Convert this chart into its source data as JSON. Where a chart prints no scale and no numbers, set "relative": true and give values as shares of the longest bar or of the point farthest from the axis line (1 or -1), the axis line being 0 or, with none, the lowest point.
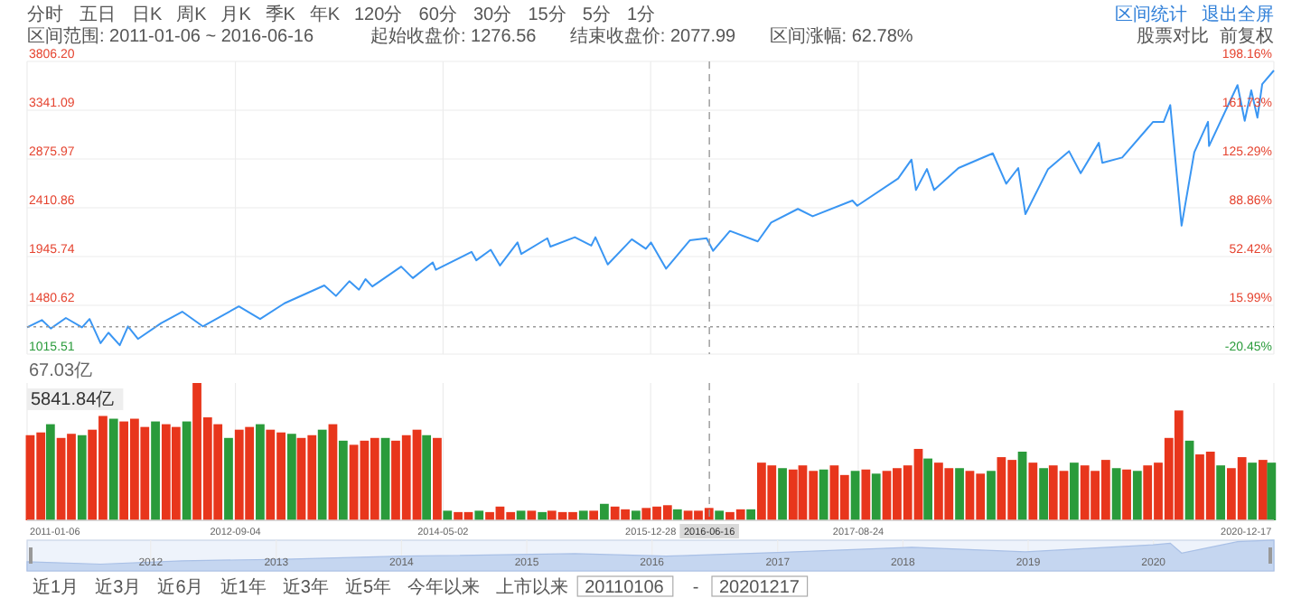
{
  "chart_data": [
    {
      "type": "line",
      "xlim": [
        "2011-01-06",
        "2020-12-17"
      ],
      "xticks": [
        "2011-01-06",
        "2012-09-04",
        "2014-05-02",
        "2015-12-28",
        "2017-08-24",
        "2020-12-17"
      ],
      "ylim": [
        1015.51,
        3806.2
      ],
      "yticks": [
        1015.51,
        1480.62,
        1945.74,
        2410.86,
        2875.97,
        3341.09,
        {
          "value": 3806.2,
          "label": "3806.20"
        }
      ],
      "y2lim": [
        -20.45,
        198.16
      ],
      "y2ticks": [
        {
          "value": -20.45,
          "label": "-20.45%"
        },
        {
          "value": 15.99,
          "label": "15.99%"
        },
        {
          "value": 52.42,
          "label": "52.42%"
        },
        {
          "value": 88.86,
          "label": "88.86%"
        },
        {
          "value": 125.29,
          "label": "125.29%"
        },
        {
          "value": 161.73,
          "label": "161.73%"
        },
        {
          "value": 198.16,
          "label": "198.16%"
        }
      ],
      "grid": true,
      "tick_labels": "y",
      "ref_lines": [
        {
          "axis": "x",
          "value": "2016-06-16",
          "line_style": "dashed",
          "color": "#999999"
        },
        {
          "axis": "y",
          "value": 1276.56,
          "line_style": "dotted",
          "color": "#999999"
        }
      ],
      "series": [
        {
          "color": "#3a96f3",
          "x": [
            "2011-01-06",
            "2011-02-18",
            "2011-03-16",
            "2011-04-29",
            "2011-06-15",
            "2011-07-07",
            "2011-08-08",
            "2011-08-31",
            "2011-10-03",
            "2011-10-27",
            "2011-11-25",
            "2012-01-31",
            "2012-04-02",
            "2012-06-01",
            "2012-09-14",
            "2012-11-15",
            "2013-01-25",
            "2013-05-21",
            "2013-06-24",
            "2013-08-02",
            "2013-08-30",
            "2013-09-18",
            "2013-10-08",
            "2013-12-31",
            "2014-02-03",
            "2014-04-02",
            "2014-04-11",
            "2014-07-24",
            "2014-08-07",
            "2014-09-18",
            "2014-10-15",
            "2014-12-05",
            "2014-12-16",
            "2015-03-02",
            "2015-03-11",
            "2015-05-21",
            "2015-07-08",
            "2015-07-20",
            "2015-08-25",
            "2015-11-03",
            "2015-12-14",
            "2015-12-29",
            "2016-02-11",
            "2016-04-20",
            "2016-06-08",
            "2016-06-27",
            "2016-08-15",
            "2016-11-04",
            "2016-12-13",
            "2017-03-01",
            "2017-04-13",
            "2017-08-07",
            "2017-08-21",
            "2017-12-18",
            "2018-01-26",
            "2018-02-08",
            "2018-03-12",
            "2018-04-02",
            "2018-06-12",
            "2018-07-25",
            "2018-09-20",
            "2018-10-29",
            "2018-12-03",
            "2018-12-24",
            "2019-02-28",
            "2019-04-30",
            "2019-06-03",
            "2019-07-26",
            "2019-08-05",
            "2019-10-02",
            "2019-12-31",
            "2020-01-31",
            "2020-02-19",
            "2020-03-23",
            "2020-04-29",
            "2020-06-08",
            "2020-06-11",
            "2020-09-02",
            "2020-09-23",
            "2020-10-12",
            "2020-10-30",
            "2020-11-13",
            "2020-12-17"
          ],
          "values": [
            1270,
            1340,
            1260,
            1360,
            1270,
            1350,
            1120,
            1220,
            1100,
            1280,
            1160,
            1310,
            1420,
            1280,
            1470,
            1350,
            1500,
            1670,
            1570,
            1710,
            1630,
            1730,
            1660,
            1850,
            1740,
            1890,
            1820,
            1990,
            1910,
            2010,
            1860,
            2080,
            1970,
            2120,
            2040,
            2130,
            2050,
            2130,
            1870,
            2110,
            2020,
            2080,
            1830,
            2100,
            2120,
            2000,
            2190,
            2090,
            2270,
            2400,
            2330,
            2480,
            2430,
            2690,
            2870,
            2580,
            2780,
            2580,
            2790,
            2850,
            2930,
            2640,
            2790,
            2350,
            2780,
            2950,
            2740,
            3030,
            2840,
            2890,
            3230,
            3230,
            3390,
            2240,
            2940,
            3230,
            3000,
            3580,
            3240,
            3530,
            3270,
            3590,
            3720
          ]
        }
      ]
    },
    {
      "type": "bar",
      "relative": true,
      "xlim": [
        "2011-01-06",
        "2020-12-17"
      ],
      "xticks": [
        "2011-01-06",
        "2012-09-04",
        "2014-05-02",
        "2015-12-28",
        "2017-08-24",
        "2020-12-17"
      ],
      "grid": "x",
      "tick_labels": "x",
      "annotations": [
        "67.03亿",
        "5841.84亿"
      ],
      "ref_lines": [
        {
          "axis": "x",
          "value": "2016-06-16",
          "label": "2016-06-16",
          "line_style": "dashed",
          "color": "#999999"
        }
      ],
      "x": [
        "2011-01-15",
        "2011-02-15",
        "2011-03-15",
        "2011-04-15",
        "2011-05-15",
        "2011-06-15",
        "2011-07-15",
        "2011-08-15",
        "2011-09-15",
        "2011-10-15",
        "2011-11-15",
        "2011-12-15",
        "2012-01-15",
        "2012-02-15",
        "2012-03-15",
        "2012-04-15",
        "2012-05-15",
        "2012-06-15",
        "2012-07-15",
        "2012-08-15",
        "2012-09-15",
        "2012-10-15",
        "2012-11-15",
        "2012-12-15",
        "2013-01-15",
        "2013-02-15",
        "2013-03-15",
        "2013-04-15",
        "2013-05-15",
        "2013-06-15",
        "2013-07-15",
        "2013-08-15",
        "2013-09-15",
        "2013-10-15",
        "2013-11-15",
        "2013-12-15",
        "2014-01-15",
        "2014-02-15",
        "2014-03-15",
        "2014-04-15",
        "2014-05-15",
        "2014-06-15",
        "2014-07-15",
        "2014-08-15",
        "2014-09-15",
        "2014-10-15",
        "2014-11-15",
        "2014-12-15",
        "2015-01-15",
        "2015-02-15",
        "2015-03-15",
        "2015-04-15",
        "2015-05-15",
        "2015-06-15",
        "2015-07-15",
        "2015-08-15",
        "2015-09-15",
        "2015-10-15",
        "2015-11-15",
        "2015-12-15",
        "2016-01-15",
        "2016-02-15",
        "2016-03-15",
        "2016-04-15",
        "2016-05-15",
        "2016-06-15",
        "2016-07-15",
        "2016-08-15",
        "2016-09-15",
        "2016-10-15",
        "2016-11-15",
        "2016-12-15",
        "2017-01-15",
        "2017-02-15",
        "2017-03-15",
        "2017-04-15",
        "2017-05-15",
        "2017-06-15",
        "2017-07-15",
        "2017-08-15",
        "2017-09-15",
        "2017-10-15",
        "2017-11-15",
        "2017-12-15",
        "2018-01-15",
        "2018-02-15",
        "2018-03-15",
        "2018-04-15",
        "2018-05-15",
        "2018-06-15",
        "2018-07-15",
        "2018-08-15",
        "2018-09-15",
        "2018-10-15",
        "2018-11-15",
        "2018-12-15",
        "2019-01-15",
        "2019-02-15",
        "2019-03-15",
        "2019-04-15",
        "2019-05-15",
        "2019-06-15",
        "2019-07-15",
        "2019-08-15",
        "2019-09-15",
        "2019-10-15",
        "2019-11-15",
        "2019-12-15",
        "2020-01-15",
        "2020-02-15",
        "2020-03-15",
        "2020-04-15",
        "2020-05-15",
        "2020-06-15",
        "2020-07-15",
        "2020-08-15",
        "2020-09-15",
        "2020-10-15",
        "2020-11-15",
        "2020-12-10"
      ],
      "values": [
        0.62,
        0.64,
        0.7,
        0.6,
        0.63,
        0.62,
        0.66,
        0.76,
        0.74,
        0.72,
        0.74,
        0.68,
        0.72,
        0.7,
        0.68,
        0.72,
        1,
        0.75,
        0.7,
        0.6,
        0.66,
        0.68,
        0.7,
        0.66,
        0.64,
        0.63,
        0.6,
        0.62,
        0.66,
        0.7,
        0.58,
        0.55,
        0.58,
        0.6,
        0.6,
        0.58,
        0.62,
        0.66,
        0.62,
        0.6,
        0.07,
        0.06,
        0.06,
        0.07,
        0.06,
        0.1,
        0.06,
        0.07,
        0.07,
        0.06,
        0.07,
        0.06,
        0.06,
        0.07,
        0.07,
        0.12,
        0.1,
        0.08,
        0.07,
        0.09,
        0.1,
        0.11,
        0.08,
        0.07,
        0.07,
        0.09,
        0.07,
        0.06,
        0.08,
        0.08,
        0.42,
        0.4,
        0.38,
        0.37,
        0.4,
        0.36,
        0.37,
        0.4,
        0.33,
        0.36,
        0.37,
        0.34,
        0.36,
        0.38,
        0.4,
        0.52,
        0.45,
        0.42,
        0.38,
        0.38,
        0.36,
        0.34,
        0.36,
        0.46,
        0.44,
        0.5,
        0.42,
        0.38,
        0.4,
        0.36,
        0.42,
        0.4,
        0.36,
        0.44,
        0.38,
        0.37,
        0.36,
        0.4,
        0.42,
        0.6,
        0.8,
        0.58,
        0.48,
        0.5,
        0.4,
        0.38,
        0.46,
        0.42,
        0.44,
        0.42
      ],
      "colors": [
        "#e8361c",
        "#e8361c",
        "#2a9b3b",
        "#e8361c",
        "#e8361c",
        "#2a9b3b",
        "#e8361c",
        "#e8361c",
        "#2a9b3b",
        "#e8361c",
        "#e8361c",
        "#e8361c",
        "#2a9b3b",
        "#e8361c",
        "#e8361c",
        "#2a9b3b",
        "#e8361c",
        "#e8361c",
        "#e8361c",
        "#2a9b3b",
        "#e8361c",
        "#e8361c",
        "#2a9b3b",
        "#e8361c",
        "#e8361c",
        "#2a9b3b",
        "#e8361c",
        "#e8361c",
        "#2a9b3b",
        "#e8361c",
        "#2a9b3b",
        "#e8361c",
        "#e8361c",
        "#e8361c",
        "#2a9b3b",
        "#e8361c",
        "#e8361c",
        "#e8361c",
        "#2a9b3b",
        "#e8361c",
        "#2a9b3b",
        "#e8361c",
        "#e8361c",
        "#2a9b3b",
        "#e8361c",
        "#e8361c",
        "#e8361c",
        "#2a9b3b",
        "#e8361c",
        "#2a9b3b",
        "#e8361c",
        "#e8361c",
        "#e8361c",
        "#2a9b3b",
        "#e8361c",
        "#2a9b3b",
        "#e8361c",
        "#e8361c",
        "#2a9b3b",
        "#e8361c",
        "#e8361c",
        "#e8361c",
        "#2a9b3b",
        "#e8361c",
        "#e8361c",
        "#e8361c",
        "#2a9b3b",
        "#e8361c",
        "#e8361c",
        "#2a9b3b",
        "#e8361c",
        "#e8361c",
        "#2a9b3b",
        "#e8361c",
        "#e8361c",
        "#e8361c",
        "#2a9b3b",
        "#e8361c",
        "#e8361c",
        "#2a9b3b",
        "#e8361c",
        "#2a9b3b",
        "#e8361c",
        "#e8361c",
        "#e8361c",
        "#e8361c",
        "#2a9b3b",
        "#e8361c",
        "#e8361c",
        "#2a9b3b",
        "#e8361c",
        "#e8361c",
        "#2a9b3b",
        "#e8361c",
        "#e8361c",
        "#2a9b3b",
        "#e8361c",
        "#2a9b3b",
        "#e8361c",
        "#e8361c",
        "#2a9b3b",
        "#e8361c",
        "#e8361c",
        "#e8361c",
        "#2a9b3b",
        "#e8361c",
        "#2a9b3b",
        "#e8361c",
        "#e8361c",
        "#e8361c",
        "#e8361c",
        "#2a9b3b",
        "#e8361c",
        "#e8361c",
        "#2a9b3b",
        "#e8361c",
        "#e8361c",
        "#2a9b3b",
        "#e8361c",
        "#2a9b3b"
      ]
    },
    {
      "type": "area",
      "relative": true,
      "color": "#c5d6f0",
      "xlim": [
        "2011-01-06",
        "2020-12-17"
      ],
      "xticks": [
        {
          "value": "2012-01-01",
          "label": "2012"
        },
        {
          "value": "2013-01-01",
          "label": "2013"
        },
        {
          "value": "2014-01-01",
          "label": "2014"
        },
        {
          "value": "2015-01-01",
          "label": "2015"
        },
        {
          "value": "2016-01-01",
          "label": "2016"
        },
        {
          "value": "2017-01-01",
          "label": "2017"
        },
        {
          "value": "2018-01-01",
          "label": "2018"
        },
        {
          "value": "2019-01-01",
          "label": "2019"
        },
        {
          "value": "2020-01-01",
          "label": "2020"
        }
      ],
      "grid": "x",
      "tick_labels": "x",
      "x": [
        "2011-01-06",
        "2011-08-08",
        "2012-04-02",
        "2013-01-25",
        "2014-01-01",
        "2015-05-21",
        "2016-02-11",
        "2017-01-01",
        "2018-01-26",
        "2018-12-24",
        "2019-12-31",
        "2020-02-19",
        "2020-03-23",
        "2020-09-02",
        "2020-12-17"
      ],
      "values": [
        0.3,
        0.22,
        0.33,
        0.38,
        0.48,
        0.56,
        0.48,
        0.6,
        0.77,
        0.62,
        0.85,
        0.9,
        0.58,
        0.95,
        1
      ]
    },
    {
      "type": "other",
      "annotations": [
        "分时",
        "五日",
        "日K",
        "周K",
        "月K",
        "季K",
        "年K",
        "120分",
        "60分",
        "30分",
        "15分",
        "5分",
        "1分",
        "区间范围: 2011-01-06 ~ 2016-06-16",
        "起始收盘价: 1276.56",
        "结束收盘价: 2077.99",
        "区间涨幅: 62.78%",
        "区间统计",
        "退出全屏",
        "股票对比",
        "前复权",
        "近1月",
        "近3月",
        "近6月",
        "近1年",
        "近3年",
        "近5年",
        "今年以来",
        "上市以来",
        "20110106",
        "-",
        "20201217"
      ]
    }
  ]
}
